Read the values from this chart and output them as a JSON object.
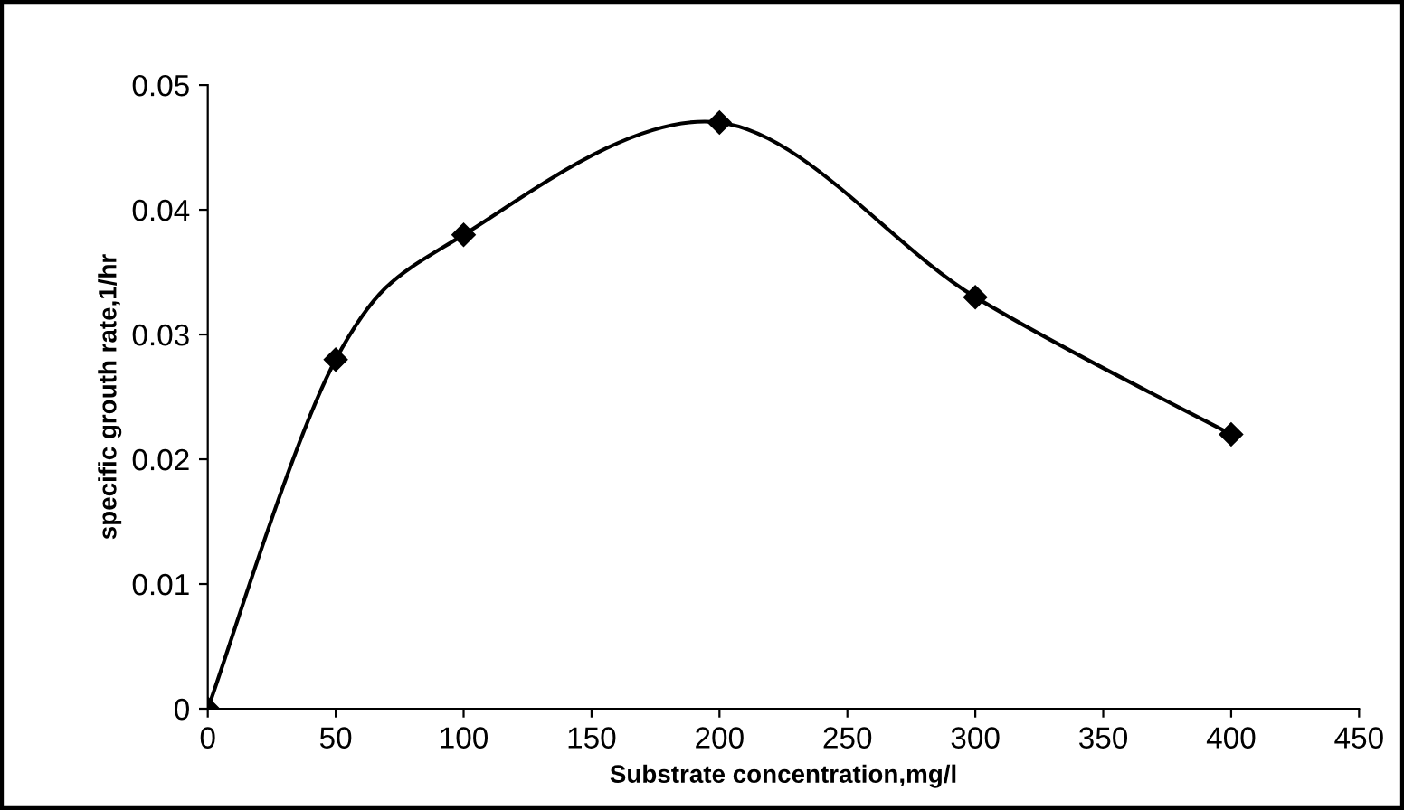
{
  "chart_data": {
    "type": "line",
    "xlabel": "Substrate concentration,mg/l",
    "ylabel": "specific grouth rate,1/hr",
    "x": [
      0,
      50,
      100,
      200,
      300,
      400
    ],
    "series": [
      {
        "color": "#000000",
        "values": [
          0,
          0.028,
          0.038,
          0.047,
          0.033,
          0.022
        ]
      }
    ],
    "xlim": [
      0,
      450
    ],
    "xticks": [
      0,
      50,
      100,
      150,
      200,
      250,
      300,
      350,
      400,
      450
    ],
    "ylim": [
      0,
      0.05
    ],
    "yticks": [
      0,
      0.01,
      0.02,
      0.03,
      0.04,
      0.05
    ],
    "marker": "diamond",
    "line_style": "solid",
    "grid": false,
    "legend": false
  }
}
